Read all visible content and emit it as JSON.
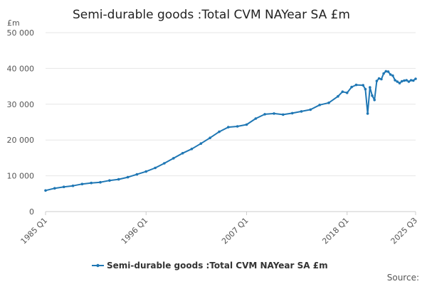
{
  "chart_data": {
    "type": "line",
    "title": "Semi-durable goods :Total CVM NAYear SA £m",
    "ylabel": "£m",
    "xlabel": "",
    "ylim": [
      0,
      50000
    ],
    "yticks": [
      0,
      10000,
      20000,
      30000,
      40000,
      50000
    ],
    "ytick_labels": [
      "0",
      "10 000",
      "20 000",
      "30 000",
      "40 000",
      "50 000"
    ],
    "x_range": [
      "1985 Q1",
      "2025 Q3"
    ],
    "xticks": [
      "1985 Q1",
      "1996 Q1",
      "2007 Q1",
      "2018 Q1",
      "2025 Q3"
    ],
    "legend_position": "bottom",
    "grid": true,
    "source_label": "Source:",
    "series": [
      {
        "name": "Semi-durable goods :Total CVM NAYear SA £m",
        "color": "#1f77b4",
        "points": [
          [
            "1985 Q1",
            5900
          ],
          [
            "1986 Q1",
            6500
          ],
          [
            "1987 Q1",
            6900
          ],
          [
            "1988 Q1",
            7200
          ],
          [
            "1989 Q1",
            7700
          ],
          [
            "1990 Q1",
            8000
          ],
          [
            "1991 Q1",
            8200
          ],
          [
            "1992 Q1",
            8700
          ],
          [
            "1993 Q1",
            9000
          ],
          [
            "1994 Q1",
            9600
          ],
          [
            "1995 Q1",
            10400
          ],
          [
            "1996 Q1",
            11200
          ],
          [
            "1997 Q1",
            12200
          ],
          [
            "1998 Q1",
            13500
          ],
          [
            "1999 Q1",
            14900
          ],
          [
            "2000 Q1",
            16300
          ],
          [
            "2001 Q1",
            17500
          ],
          [
            "2002 Q1",
            19000
          ],
          [
            "2003 Q1",
            20600
          ],
          [
            "2004 Q1",
            22300
          ],
          [
            "2005 Q1",
            23600
          ],
          [
            "2006 Q1",
            23800
          ],
          [
            "2007 Q1",
            24300
          ],
          [
            "2008 Q1",
            26000
          ],
          [
            "2009 Q1",
            27200
          ],
          [
            "2010 Q1",
            27400
          ],
          [
            "2011 Q1",
            27100
          ],
          [
            "2012 Q1",
            27500
          ],
          [
            "2013 Q1",
            28000
          ],
          [
            "2014 Q1",
            28500
          ],
          [
            "2015 Q1",
            29800
          ],
          [
            "2016 Q1",
            30400
          ],
          [
            "2017 Q1",
            32200
          ],
          [
            "2017 Q3",
            33500
          ],
          [
            "2018 Q1",
            33200
          ],
          [
            "2018 Q3",
            34800
          ],
          [
            "2019 Q1",
            35400
          ],
          [
            "2019 Q4",
            35300
          ],
          [
            "2020 Q1",
            34200
          ],
          [
            "2020 Q2",
            27400
          ],
          [
            "2020 Q3",
            34700
          ],
          [
            "2020 Q4",
            32400
          ],
          [
            "2021 Q1",
            31200
          ],
          [
            "2021 Q2",
            36500
          ],
          [
            "2021 Q3",
            37200
          ],
          [
            "2021 Q4",
            37000
          ],
          [
            "2022 Q1",
            38600
          ],
          [
            "2022 Q2",
            39200
          ],
          [
            "2022 Q3",
            39100
          ],
          [
            "2022 Q4",
            38300
          ],
          [
            "2023 Q1",
            38000
          ],
          [
            "2023 Q2",
            36700
          ],
          [
            "2023 Q3",
            36300
          ],
          [
            "2023 Q4",
            35900
          ],
          [
            "2024 Q1",
            36400
          ],
          [
            "2024 Q2",
            36600
          ],
          [
            "2024 Q3",
            36700
          ],
          [
            "2024 Q4",
            36300
          ],
          [
            "2025 Q1",
            36700
          ],
          [
            "2025 Q2",
            36600
          ],
          [
            "2025 Q3",
            37100
          ]
        ]
      }
    ]
  }
}
